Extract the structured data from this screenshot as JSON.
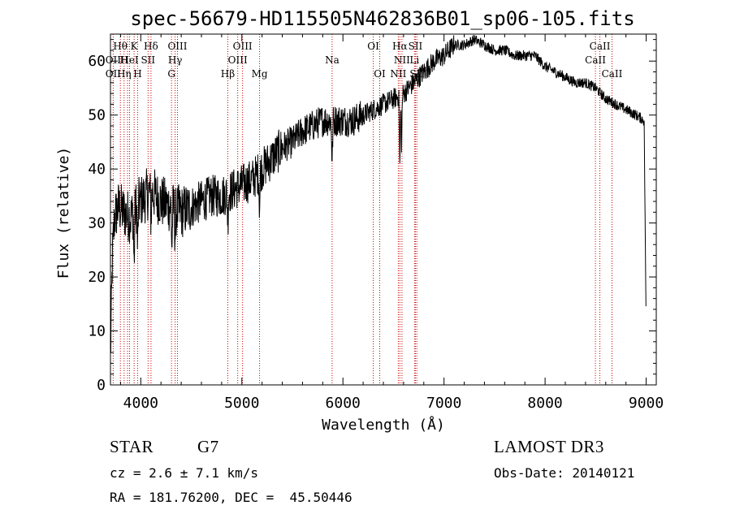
{
  "chart_data": {
    "type": "line",
    "title": "spec-56679-HD115505N462836B01_sp06-105.fits",
    "xlabel": "Wavelength (Å)",
    "ylabel": "Flux (relative)",
    "xlim": [
      3700,
      9100
    ],
    "ylim": [
      0,
      65
    ],
    "xticks": [
      4000,
      5000,
      6000,
      7000,
      8000,
      9000
    ],
    "xtick_labels": [
      "4000",
      "5000",
      "6000",
      "7000",
      "8000",
      "9000"
    ],
    "yticks": [
      0,
      10,
      20,
      30,
      40,
      50,
      60
    ],
    "ytick_labels": [
      "0",
      "10",
      "20",
      "30",
      "40",
      "50",
      "60"
    ],
    "grid": false,
    "continuum_x": [
      3700,
      3720,
      3740,
      3780,
      3830,
      3900,
      3950,
      4000,
      4050,
      4100,
      4150,
      4200,
      4300,
      4400,
      4500,
      4600,
      4700,
      4800,
      4900,
      5000,
      5100,
      5200,
      5300,
      5400,
      5500,
      5600,
      5700,
      5800,
      5900,
      6000,
      6100,
      6200,
      6300,
      6400,
      6500,
      6600,
      6700,
      6800,
      6900,
      7000,
      7100,
      7200,
      7300,
      7400,
      7500,
      7600,
      7700,
      7800,
      7900,
      8000,
      8100,
      8200,
      8300,
      8400,
      8500,
      8600,
      8700,
      8800,
      8900,
      8980,
      9000
    ],
    "continuum_y": [
      5,
      24,
      31,
      33,
      32,
      31,
      33,
      34,
      35,
      36,
      35,
      34,
      33,
      32,
      33,
      34,
      35,
      35,
      36,
      37,
      38,
      40,
      42,
      44,
      45,
      47,
      48,
      49,
      49,
      49,
      49,
      50,
      51,
      52,
      53,
      54,
      56,
      58,
      60,
      61,
      63,
      63,
      64,
      63,
      62,
      62,
      61,
      61,
      61,
      59,
      58,
      57,
      56,
      56,
      55,
      53,
      52,
      51,
      50,
      49,
      10
    ],
    "noise_segments": [
      {
        "x0": 3700,
        "x1": 4500,
        "amp": 5
      },
      {
        "x0": 4500,
        "x1": 5400,
        "amp": 4
      },
      {
        "x0": 5400,
        "x1": 6200,
        "amp": 3
      },
      {
        "x0": 6200,
        "x1": 7100,
        "amp": 2
      },
      {
        "x0": 7100,
        "x1": 9000,
        "amp": 1
      }
    ],
    "absorption_features": [
      {
        "x": 3934,
        "depth": 10
      },
      {
        "x": 3969,
        "depth": 8
      },
      {
        "x": 4101,
        "depth": 5
      },
      {
        "x": 4308,
        "depth": 7
      },
      {
        "x": 4340,
        "depth": 5
      },
      {
        "x": 4861,
        "depth": 5
      },
      {
        "x": 5175,
        "depth": 6
      },
      {
        "x": 5893,
        "depth": 8
      },
      {
        "x": 6563,
        "depth": 13
      },
      {
        "x": 6580,
        "depth": 9
      }
    ],
    "line_markers": [
      {
        "x": 3727,
        "color": "#cc0000"
      },
      {
        "x": 3798,
        "color": "#cc0000"
      },
      {
        "x": 3835,
        "color": "#cc0000"
      },
      {
        "x": 3869,
        "color": "#cc0000"
      },
      {
        "x": 3889,
        "color": "#cc0000"
      },
      {
        "x": 3934,
        "color": "#cc0000"
      },
      {
        "x": 3969,
        "color": "#cc0000"
      },
      {
        "x": 4072,
        "color": "#cc0000"
      },
      {
        "x": 4101,
        "color": "#cc0000"
      },
      {
        "x": 4304,
        "color": "#cc0000"
      },
      {
        "x": 4340,
        "color": "#cc0000"
      },
      {
        "x": 4363,
        "color": "#cc0000"
      },
      {
        "x": 4861,
        "color": "#cc0000"
      },
      {
        "x": 4959,
        "color": "#cc0000"
      },
      {
        "x": 5007,
        "color": "#cc0000"
      },
      {
        "x": 5175,
        "color": "#cc0000"
      },
      {
        "x": 5893,
        "color": "#cc0000"
      },
      {
        "x": 6300,
        "color": "#cc0000"
      },
      {
        "x": 6364,
        "color": "#cc0000"
      },
      {
        "x": 6548,
        "color": "#cc0000"
      },
      {
        "x": 6563,
        "color": "#cc0000"
      },
      {
        "x": 6584,
        "color": "#cc0000"
      },
      {
        "x": 6708,
        "color": "#cc0000"
      },
      {
        "x": 6717,
        "color": "#cc0000"
      },
      {
        "x": 6731,
        "color": "#cc0000"
      },
      {
        "x": 8498,
        "color": "#cc0000"
      },
      {
        "x": 8542,
        "color": "#cc0000"
      },
      {
        "x": 8662,
        "color": "#cc0000"
      }
    ],
    "line_labels": [
      {
        "text": "Hθ",
        "x": 3798,
        "row": 0
      },
      {
        "text": "K",
        "x": 3934,
        "row": 0
      },
      {
        "text": "Hδ",
        "x": 4101,
        "row": 0
      },
      {
        "text": "OIII",
        "x": 4363,
        "row": 0
      },
      {
        "text": "OIII",
        "x": 5007,
        "row": 0
      },
      {
        "text": "OI",
        "x": 6300,
        "row": 0
      },
      {
        "text": "Hα",
        "x": 6563,
        "row": 0
      },
      {
        "text": "SII",
        "x": 6717,
        "row": 0
      },
      {
        "text": "CaII",
        "x": 8542,
        "row": 0
      },
      {
        "text": "OII",
        "x": 3727,
        "row": 1
      },
      {
        "text": "H",
        "x": 3835,
        "row": 1
      },
      {
        "text": "HeI",
        "x": 3889,
        "row": 1
      },
      {
        "text": "SII",
        "x": 4072,
        "row": 1
      },
      {
        "text": "Hγ",
        "x": 4340,
        "row": 1
      },
      {
        "text": "OIII",
        "x": 4959,
        "row": 1
      },
      {
        "text": "Na",
        "x": 5893,
        "row": 1
      },
      {
        "text": "NII",
        "x": 6584,
        "row": 1
      },
      {
        "text": "Li",
        "x": 6708,
        "row": 1
      },
      {
        "text": "CaII",
        "x": 8498,
        "row": 1
      },
      {
        "text": "OII",
        "x": 3727,
        "row": 2
      },
      {
        "text": "Hη",
        "x": 3835,
        "row": 2
      },
      {
        "text": "H",
        "x": 3969,
        "row": 2
      },
      {
        "text": "G",
        "x": 4304,
        "row": 2
      },
      {
        "text": "Hβ",
        "x": 4861,
        "row": 2
      },
      {
        "text": "Mg",
        "x": 5175,
        "row": 2
      },
      {
        "text": "OI",
        "x": 6364,
        "row": 2
      },
      {
        "text": "NII",
        "x": 6548,
        "row": 2
      },
      {
        "text": "SII",
        "x": 6731,
        "row": 2
      },
      {
        "text": "CaII",
        "x": 8662,
        "row": 2
      }
    ],
    "series_color": "#000000"
  },
  "info": {
    "object_type": "STAR",
    "subclass": "G7",
    "redshift": "cz = 2.6 ± 7.1 km/s",
    "coordinates": "RA = 181.76200, DEC =  45.50446",
    "survey": "LAMOST DR3",
    "obs_date": "Obs-Date: 20140121"
  }
}
